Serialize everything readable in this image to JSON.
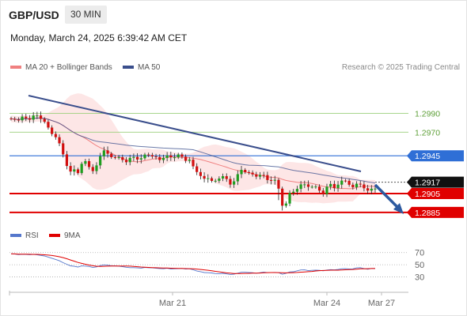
{
  "header": {
    "symbol": "GBP/USD",
    "timeframe": "30 MIN",
    "datetime": "Monday, March 24, 2025 6:39:42 AM CET"
  },
  "legend": {
    "ma20_label": "MA 20 + Bollinger Bands",
    "ma50_label": "MA 50",
    "credit": "Research © 2025 Trading Central"
  },
  "colors": {
    "candle_up": "#1f9d1f",
    "candle_down": "#d20f0f",
    "ma20": "#f08080",
    "bollinger_fill": "#fde3e3",
    "ma50": "#3a4e8c",
    "trendline": "#3a4e8c",
    "target_green": "#9ccf7b",
    "pivot_blue": "#2f6fd6",
    "support_red": "#e00000",
    "rsi": "#5577cc",
    "rsi_ma": "#e00000",
    "arrow": "#2d5aa0"
  },
  "chart_data": {
    "type": "candlestick",
    "title": "GBP/USD",
    "timeframe": "30 MIN",
    "ylim": [
      1.2874,
      1.3018
    ],
    "x_ticks": [
      "Mar 21",
      "Mar 24",
      "Mar 27"
    ],
    "close": [
      1.29842,
      1.29833,
      1.29826,
      1.29865,
      1.29848,
      1.29833,
      1.29877,
      1.29877,
      1.29841,
      1.2981,
      1.29749,
      1.29681,
      1.29647,
      1.29582,
      1.29465,
      1.29342,
      1.29283,
      1.29306,
      1.29267,
      1.29365,
      1.29393,
      1.29331,
      1.29288,
      1.29348,
      1.29445,
      1.29507,
      1.29472,
      1.29435,
      1.29433,
      1.29435,
      1.29406,
      1.29382,
      1.29428,
      1.29438,
      1.29411,
      1.29424,
      1.29463,
      1.29457,
      1.29443,
      1.29437,
      1.29405,
      1.29428,
      1.29454,
      1.29434,
      1.29434,
      1.29464,
      1.2944,
      1.29397,
      1.29409,
      1.29338,
      1.29278,
      1.29236,
      1.29207,
      1.29212,
      1.29184,
      1.29185,
      1.29209,
      1.29234,
      1.29204,
      1.29145,
      1.29179,
      1.29255,
      1.29301,
      1.29276,
      1.29271,
      1.29253,
      1.29229,
      1.29247,
      1.29245,
      1.29193,
      1.29186,
      1.29195,
      1.29102,
      1.28921,
      1.28944,
      1.29057,
      1.29069,
      1.29099,
      1.29147,
      1.29147,
      1.29121,
      1.29122,
      1.29124,
      1.29081,
      1.29043,
      1.29123,
      1.29151,
      1.29108,
      1.29144,
      1.29187,
      1.29185,
      1.29143,
      1.29116,
      1.29154,
      1.29146,
      1.29106,
      1.29081,
      1.29101,
      1.29102
    ],
    "levels": [
      {
        "value": "1.2990",
        "style": "thin-green",
        "price": 1.299
      },
      {
        "value": "1.2970",
        "style": "thin-green",
        "price": 1.297
      },
      {
        "value": "1.2945",
        "style": "pivot-blue",
        "price": 1.2945
      },
      {
        "value": "1.2917",
        "style": "current-price",
        "price": 1.2917
      },
      {
        "value": "1.2905",
        "style": "support-red",
        "price": 1.2905
      },
      {
        "value": "1.2885",
        "style": "support-red",
        "price": 1.2885
      }
    ],
    "rsi": {
      "label": "RSI",
      "ma_label": "9MA",
      "y_ticks": [
        "70",
        "50",
        "30"
      ],
      "ylim": [
        10,
        80
      ],
      "values": [
        68,
        67.5,
        66.7,
        67.2,
        66.9,
        66.5,
        66.9,
        66.3,
        65.4,
        64.4,
        62.6,
        60.7,
        58.8,
        56.5,
        53.4,
        50.8,
        48.3,
        47.5,
        46.3,
        48.1,
        47.9,
        47.2,
        45.5,
        46.6,
        48.6,
        49.8,
        49.3,
        48.2,
        48.2,
        47.7,
        46.8,
        45.9,
        45.2,
        45.2,
        44.9,
        44.5,
        45.6,
        45.1,
        44.9,
        44.4,
        43.8,
        43.4,
        44.4,
        43.2,
        43.5,
        43.6,
        43.9,
        43.1,
        43.5,
        41.8,
        39.7,
        38.6,
        37.2,
        37,
        36.6,
        35.5,
        35.2,
        35.9,
        35,
        34.1,
        34.6,
        36.2,
        37.8,
        37.8,
        37.3,
        36.9,
        36,
        37,
        37.9,
        37.1,
        37.2,
        37.5,
        37.1,
        34.4,
        35.9,
        38.3,
        38.5,
        40.1,
        41.5,
        41.6,
        40.3,
        40.8,
        41.1,
        40.9,
        40.1,
        41.4,
        42,
        41.6,
        42.3,
        43.4,
        43.6,
        43.2,
        43.3,
        44.9,
        45.2,
        43.8,
        42.7,
        43.9,
        43.9
      ]
    }
  }
}
